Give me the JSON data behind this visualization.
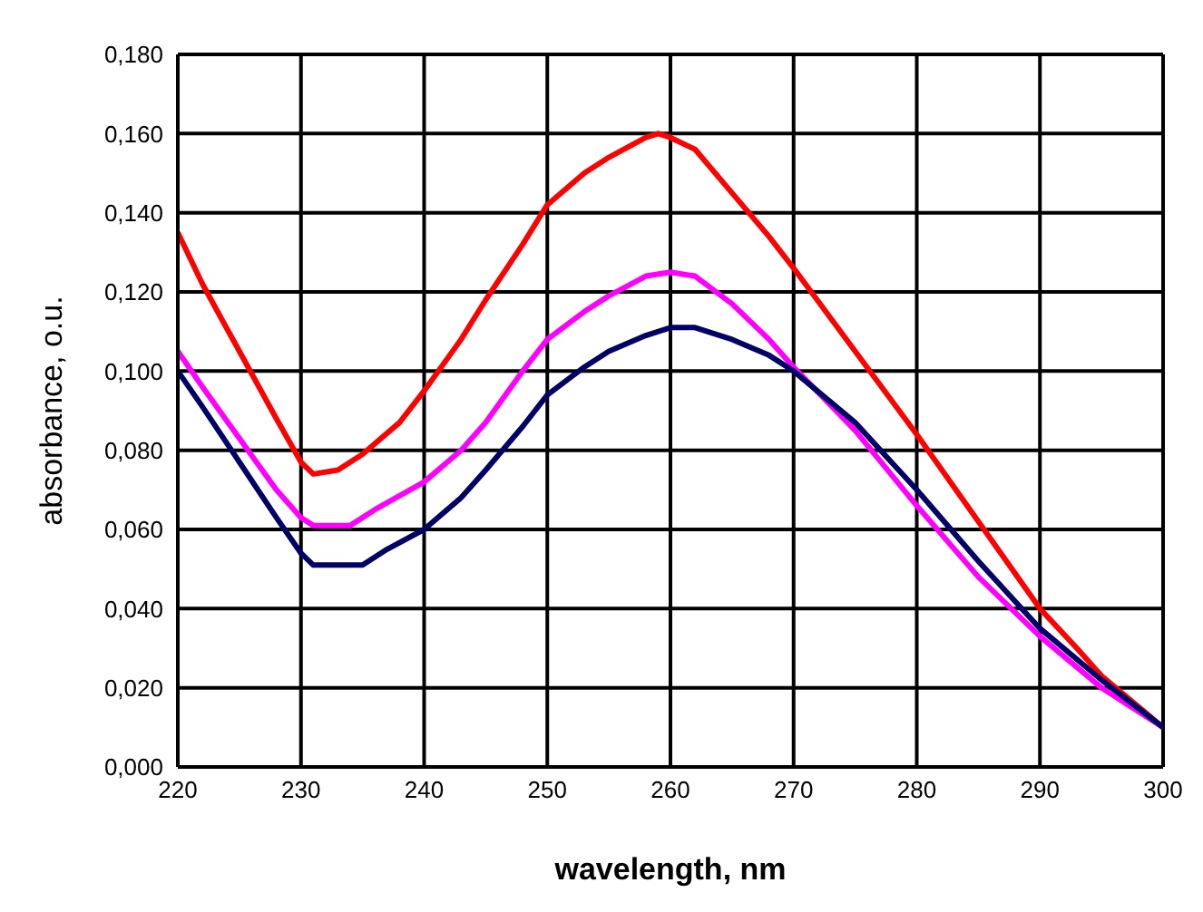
{
  "chart_data": {
    "type": "line",
    "xlabel": "wavelength, nm",
    "ylabel": "absorbance, o.u.",
    "xlim": [
      220,
      300
    ],
    "xticks": [
      220,
      230,
      240,
      250,
      260,
      270,
      280,
      290,
      300
    ],
    "ylim": [
      0,
      0.18
    ],
    "yticks": [
      {
        "value": 0,
        "label": "0,000"
      },
      {
        "value": 0.02,
        "label": "0,020"
      },
      {
        "value": 0.04,
        "label": "0,040"
      },
      {
        "value": 0.06,
        "label": "0,060"
      },
      {
        "value": 0.08,
        "label": "0,080"
      },
      {
        "value": 0.1,
        "label": "0,100"
      },
      {
        "value": 0.12,
        "label": "0,120"
      },
      {
        "value": 0.14,
        "label": "0,140"
      },
      {
        "value": 0.16,
        "label": "0,160"
      },
      {
        "value": 0.18,
        "label": "0,180"
      }
    ],
    "grid": true,
    "marker": "none",
    "line_style": "solid",
    "series": [
      {
        "color": "#ff0000",
        "x": [
          220,
          222,
          225,
          228,
          230,
          231,
          233,
          235,
          238,
          240,
          243,
          245,
          248,
          250,
          253,
          255,
          258,
          259,
          260,
          262,
          265,
          268,
          270,
          275,
          280,
          285,
          290,
          293,
          295,
          300
        ],
        "values": [
          0.135,
          0.122,
          0.105,
          0.088,
          0.077,
          0.074,
          0.075,
          0.079,
          0.087,
          0.095,
          0.108,
          0.118,
          0.132,
          0.142,
          0.15,
          0.154,
          0.159,
          0.16,
          0.159,
          0.156,
          0.145,
          0.134,
          0.126,
          0.105,
          0.084,
          0.062,
          0.04,
          0.03,
          0.023,
          0.01
        ]
      },
      {
        "color": "#ff00ff",
        "x": [
          220,
          222,
          225,
          228,
          230,
          231,
          234,
          236,
          240,
          243,
          245,
          248,
          250,
          253,
          255,
          258,
          260,
          262,
          265,
          268,
          270,
          275,
          280,
          285,
          290,
          295,
          300
        ],
        "values": [
          0.105,
          0.096,
          0.083,
          0.07,
          0.063,
          0.061,
          0.061,
          0.065,
          0.072,
          0.08,
          0.087,
          0.1,
          0.108,
          0.115,
          0.119,
          0.124,
          0.125,
          0.124,
          0.117,
          0.108,
          0.101,
          0.085,
          0.066,
          0.048,
          0.033,
          0.02,
          0.01
        ]
      },
      {
        "color": "#000066",
        "x": [
          220,
          222,
          225,
          228,
          230,
          231,
          235,
          237,
          240,
          243,
          245,
          248,
          250,
          253,
          255,
          258,
          260,
          262,
          265,
          268,
          270,
          275,
          280,
          285,
          290,
          295,
          300
        ],
        "values": [
          0.1,
          0.091,
          0.077,
          0.063,
          0.054,
          0.051,
          0.051,
          0.055,
          0.06,
          0.068,
          0.075,
          0.086,
          0.094,
          0.101,
          0.105,
          0.109,
          0.111,
          0.111,
          0.108,
          0.104,
          0.1,
          0.087,
          0.07,
          0.052,
          0.035,
          0.022,
          0.01
        ]
      }
    ]
  }
}
